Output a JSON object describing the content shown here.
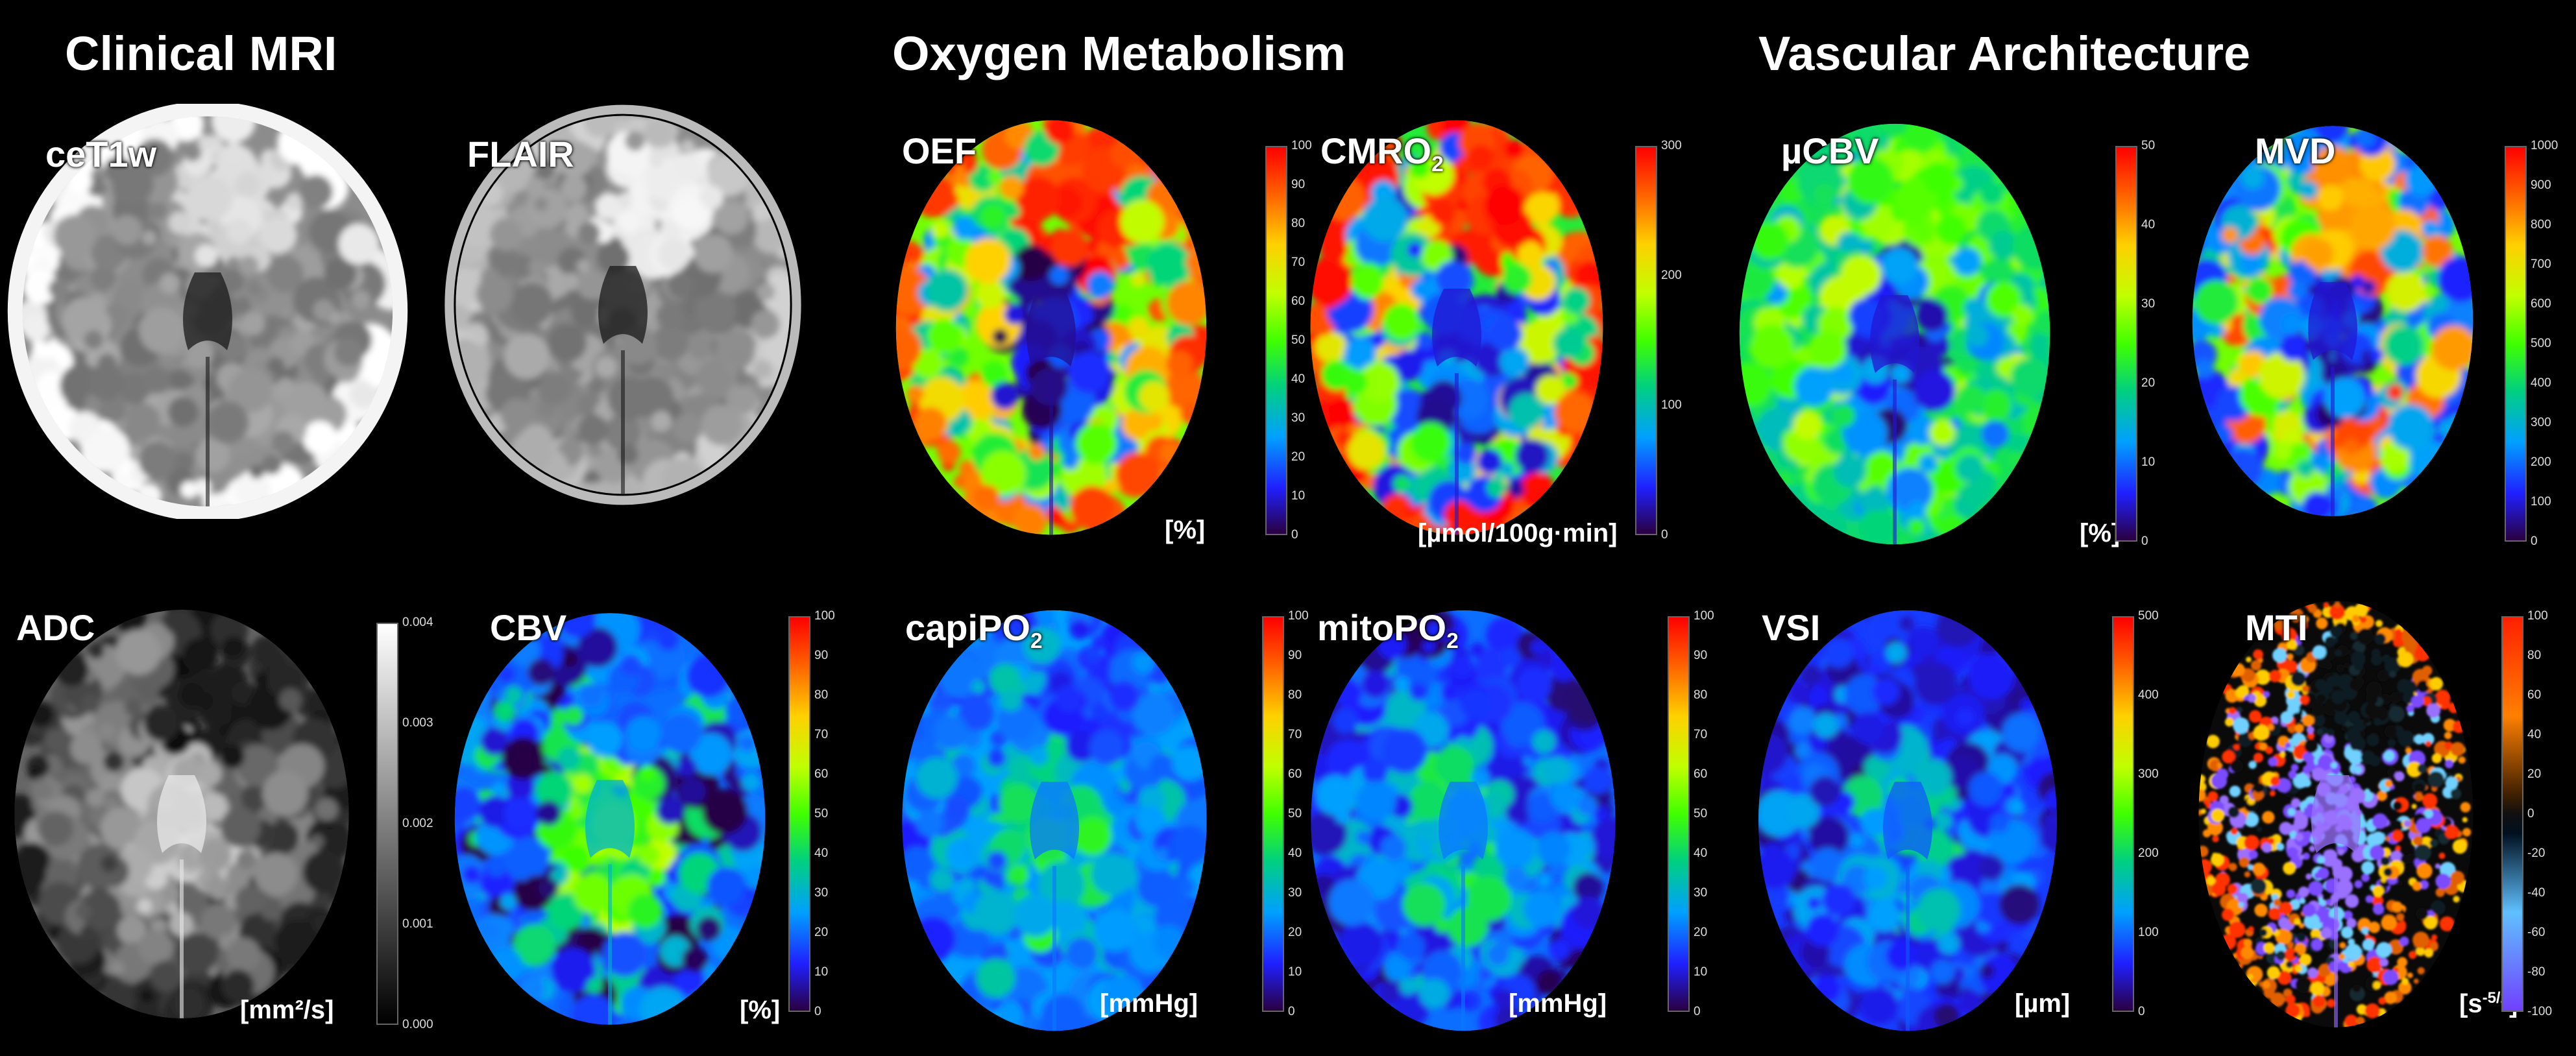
{
  "sections": {
    "clinical": "Clinical MRI",
    "oxygen": "Oxygen Metabolism",
    "vascular": "Vascular Architecture"
  },
  "panels": [
    {
      "id": "cet1w",
      "label": "ceT1w",
      "unit": "",
      "colormap": "gray",
      "ticks": []
    },
    {
      "id": "flair",
      "label": "FLAIR",
      "unit": "",
      "colormap": "gray",
      "ticks": []
    },
    {
      "id": "oef",
      "label": "OEF",
      "unit": "[%]",
      "colormap": "spectral",
      "ticks": [
        "100",
        "90",
        "80",
        "70",
        "60",
        "50",
        "40",
        "30",
        "20",
        "10",
        "0"
      ]
    },
    {
      "id": "cmro2",
      "label": "CMRO",
      "label_sub": "2",
      "unit": "[µmol/100g·min]",
      "colormap": "spectral",
      "ticks": [
        "300",
        "200",
        "100",
        "0"
      ]
    },
    {
      "id": "ucbv",
      "label": "µCBV",
      "unit": "[%]",
      "colormap": "spectral",
      "ticks": [
        "50",
        "40",
        "30",
        "20",
        "10",
        "0"
      ]
    },
    {
      "id": "mvd",
      "label": "MVD",
      "unit": "",
      "colormap": "spectral",
      "ticks": [
        "1000",
        "900",
        "800",
        "700",
        "600",
        "500",
        "400",
        "300",
        "200",
        "100",
        "0"
      ]
    },
    {
      "id": "adc",
      "label": "ADC",
      "unit": "[mm²/s]",
      "colormap": "gray",
      "ticks": [
        "0.004",
        "0.003",
        "0.002",
        "0.001",
        "0.000"
      ]
    },
    {
      "id": "cbv",
      "label": "CBV",
      "unit": "[%]",
      "colormap": "spectral",
      "ticks": [
        "100",
        "90",
        "80",
        "70",
        "60",
        "50",
        "40",
        "30",
        "20",
        "10",
        "0"
      ]
    },
    {
      "id": "capipo2",
      "label": "capiPO",
      "label_sub": "2",
      "unit": "[mmHg]",
      "colormap": "spectral",
      "ticks": [
        "100",
        "90",
        "80",
        "70",
        "60",
        "50",
        "40",
        "30",
        "20",
        "10",
        "0"
      ]
    },
    {
      "id": "mitopo2",
      "label": "mitoPO",
      "label_sub": "2",
      "unit": "[mmHg]",
      "colormap": "spectral",
      "ticks": [
        "100",
        "90",
        "80",
        "70",
        "60",
        "50",
        "40",
        "30",
        "20",
        "10",
        "0"
      ]
    },
    {
      "id": "vsi",
      "label": "VSI",
      "unit": "[µm]",
      "colormap": "spectral",
      "ticks": [
        "500",
        "400",
        "300",
        "200",
        "100",
        "0"
      ]
    },
    {
      "id": "mti",
      "label": "MTI",
      "unit": "[s",
      "unit_sup": "-5/2",
      "unit_end": "]",
      "colormap": "diverging",
      "ticks": [
        "100",
        "80",
        "60",
        "40",
        "20",
        "0",
        "-20",
        "-40",
        "-60",
        "-80",
        "-100"
      ]
    }
  ]
}
